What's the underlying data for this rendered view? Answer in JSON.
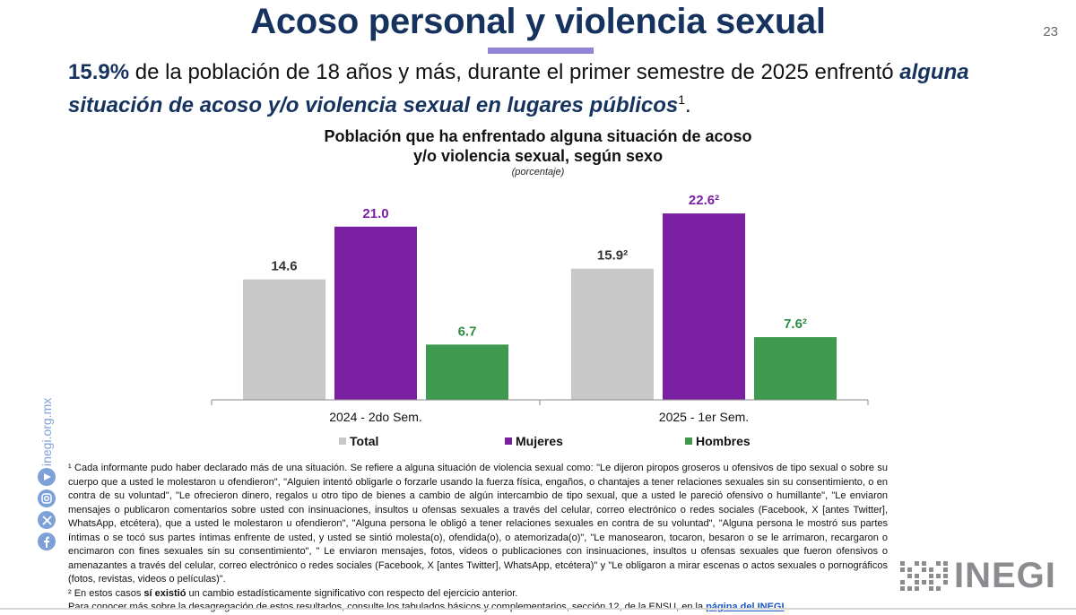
{
  "header": {
    "title": "Acoso personal y violencia sexual",
    "page_number": "23"
  },
  "headline": {
    "pct": "15.9%",
    "text": " de la población de 18 años y más, durante el primer semestre de 2025 enfrentó ",
    "emphasis": "alguna situación de acoso y/o violencia sexual en lugares públicos",
    "sup": "1",
    "end": "."
  },
  "chart_data": {
    "type": "bar",
    "title_line1": "Población que ha enfrentado alguna situación de acoso",
    "title_line2": "y/o violencia sexual, según sexo",
    "unit_label": "(porcentaje)",
    "categories": [
      "2024 - 2do Sem.",
      "2025 - 1er Sem."
    ],
    "series": [
      {
        "name": "Total",
        "color": "#c8c8c8",
        "values": [
          14.6,
          15.9
        ],
        "labels": [
          "14.6",
          "15.9²"
        ]
      },
      {
        "name": "Mujeres",
        "color": "#7b1fa2",
        "values": [
          21.0,
          22.6
        ],
        "labels": [
          "21.0",
          "22.6²"
        ]
      },
      {
        "name": "Hombres",
        "color": "#3d9a4e",
        "values": [
          6.7,
          7.6
        ],
        "labels": [
          "6.7",
          "7.6²"
        ]
      }
    ],
    "ylim": [
      0,
      25
    ],
    "grid": false,
    "legend_position": "bottom"
  },
  "colors": {
    "label_total": "#333333",
    "label_mujeres": "#7b1fa2",
    "label_hombres": "#2e8b43"
  },
  "footnotes": {
    "fn1": "¹ Cada informante pudo haber declarado más de una situación. Se refiere a alguna situación de violencia sexual como: \"Le dijeron piropos groseros u ofensivos de tipo sexual o sobre su cuerpo que a usted le molestaron u ofendieron\", \"Alguien intentó obligarle o forzarle usando la fuerza física, engaños, o chantajes a tener relaciones sexuales sin su consentimiento, o en contra de su voluntad\", \"Le ofrecieron dinero, regalos u otro tipo de bienes a cambio de algún intercambio de tipo sexual, que a usted le pareció ofensivo o humillante\", \"Le enviaron mensajes o publicaron comentarios sobre usted con insinuaciones, insultos u ofensas sexuales a través del celular, correo electrónico o redes sociales (Facebook, X [antes Twitter], WhatsApp, etcétera), que a usted le molestaron u ofendieron\", \"Alguna persona le obligó a tener relaciones sexuales en contra de su voluntad\", \"Alguna persona le mostró sus partes íntimas o se tocó sus partes íntimas enfrente de usted, y usted se sintió molesta(o), ofendida(o), o atemorizada(o)\", \"Le manosearon, tocaron, besaron o se le arrimaron, recargaron o encimaron con fines sexuales sin su consentimiento\", \" Le enviaron mensajes, fotos, videos o publicaciones con insinuaciones, insultos u ofensas sexuales que fueron ofensivos o amenazantes a través del celular, correo electrónico o redes sociales (Facebook, X [antes Twitter], WhatsApp, etcétera)\" y \"Le obligaron a mirar escenas o actos sexuales o pornográficos (fotos, revistas, videos o películas)\".",
    "fn2_prefix": "² En estos casos ",
    "fn2_bold": "sí existió",
    "fn2_suffix": " un cambio estadísticamente significativo con respecto del ejercicio anterior.",
    "more_prefix": "Para conocer más sobre la desagregación de estos resultados, consulte los tabulados básicos y complementarios, sección 12, de la ENSU, en la ",
    "more_link": "página del INEGI",
    "more_suffix": "."
  },
  "sidebar": {
    "url": "inegi.org.mx",
    "icons": [
      "youtube-icon",
      "instagram-icon",
      "x-icon",
      "facebook-icon"
    ]
  },
  "logo": {
    "text": "INEGI"
  }
}
